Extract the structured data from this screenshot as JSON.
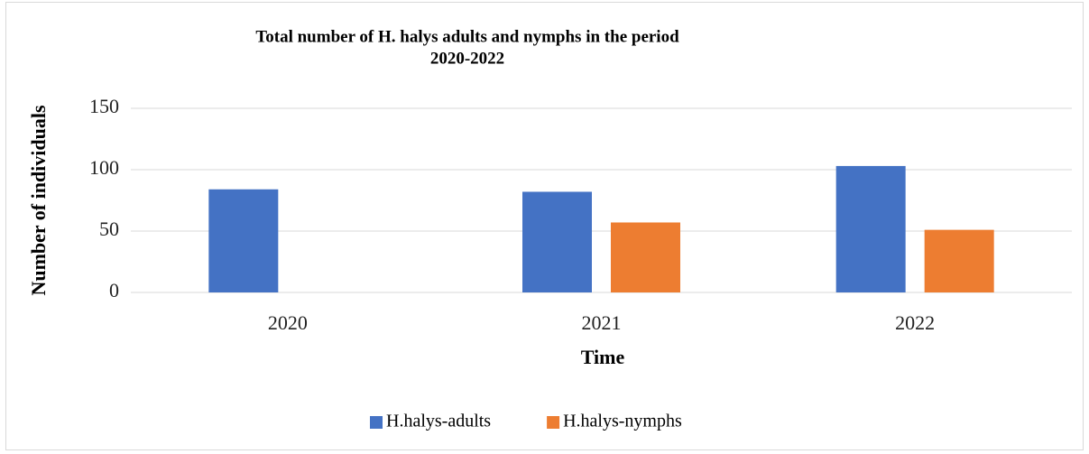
{
  "chart_data": {
    "type": "bar",
    "title": [
      "Total number of H. halys adults and nymphs in the period",
      "2020-2022"
    ],
    "x_label": "Time",
    "y_label": "Number of individuals",
    "categories": [
      "2020",
      "2021",
      "2022"
    ],
    "series": [
      {
        "name": "H.halys-adults",
        "color": "#4472c4",
        "values": [
          84,
          82,
          103
        ]
      },
      {
        "name": "H.halys-nymphs",
        "color": "#ed7d31",
        "values": [
          0,
          57,
          51
        ]
      }
    ],
    "ylim": [
      0,
      150
    ],
    "yticks": [
      0,
      50,
      100,
      150
    ],
    "grid": true,
    "legend": "bottom"
  }
}
